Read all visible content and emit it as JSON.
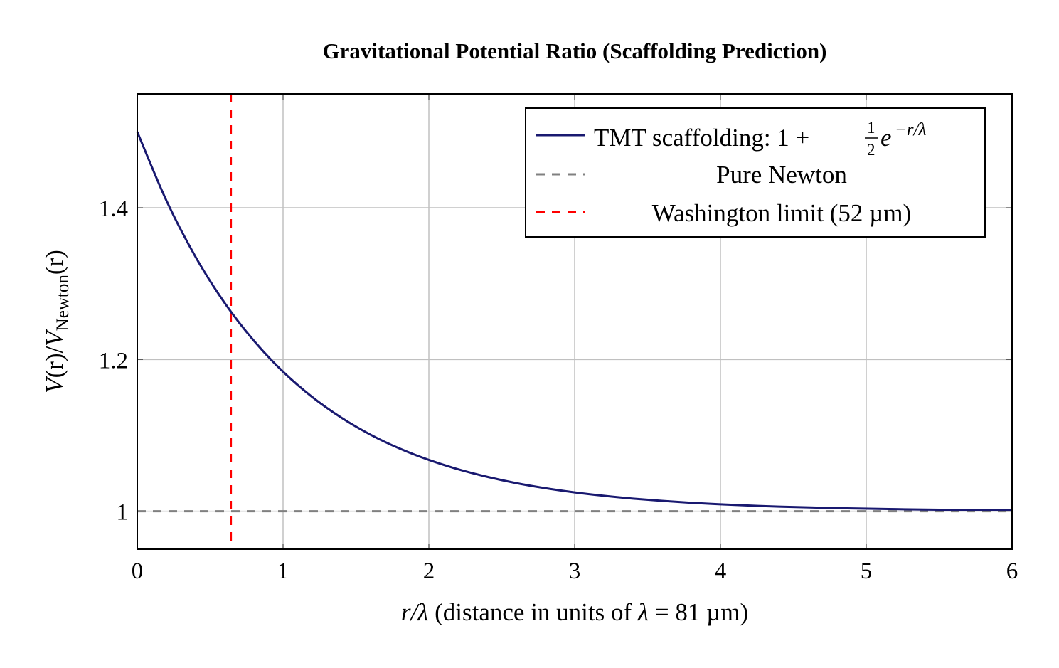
{
  "chart_data": {
    "type": "line",
    "title": "Gravitational Potential Ratio (Scaffolding Prediction)",
    "xlabel": {
      "var": "r/λ",
      "text": " (distance in units of ",
      "lambda": "λ",
      "eq": " = 81 µm)"
    },
    "ylabel": {
      "V1": "V",
      "r1": "(r)/",
      "V2": "V",
      "sub": "Newton",
      "r2": "(r)"
    },
    "xlim": [
      0,
      6
    ],
    "ylim": [
      0.95,
      1.55
    ],
    "xticks": [
      0,
      1,
      2,
      3,
      4,
      5,
      6
    ],
    "yticks": [
      1,
      1.2,
      1.4
    ],
    "ytick_labels": [
      "1",
      "1.2",
      "1.4"
    ],
    "grid": true,
    "legend_position": "top-right",
    "series": [
      {
        "name": "TMT scaffolding: 1 + ½e^(−r/λ)",
        "legend": {
          "prefix": "TMT scaffolding: 1 + ",
          "num": "1",
          "den": "2",
          "base": "e",
          "exp": "−r/λ"
        },
        "color": "#191970",
        "style": "solid",
        "x": [
          0,
          0.2,
          0.4,
          0.6,
          0.8,
          1.0,
          1.2,
          1.4,
          1.6,
          1.8,
          2.0,
          2.2,
          2.4,
          2.6,
          2.8,
          3.0,
          3.2,
          3.4,
          3.6,
          3.8,
          4.0,
          4.4,
          4.8,
          5.2,
          5.6,
          6.0
        ],
        "y": [
          1.5,
          1.4094,
          1.3352,
          1.2744,
          1.2247,
          1.1839,
          1.1506,
          1.1233,
          1.1009,
          1.0826,
          1.0677,
          1.0554,
          1.0454,
          1.0371,
          1.0304,
          1.0249,
          1.0204,
          1.0167,
          1.0137,
          1.0112,
          1.0092,
          1.0061,
          1.0041,
          1.0028,
          1.0018,
          1.0012
        ]
      },
      {
        "name": "Pure Newton",
        "color": "#808080",
        "style": "dashed",
        "y_const": 1
      },
      {
        "name": "Washington limit (52 µm)",
        "color": "#ff0000",
        "style": "dashed",
        "x_const": 0.642
      }
    ]
  }
}
